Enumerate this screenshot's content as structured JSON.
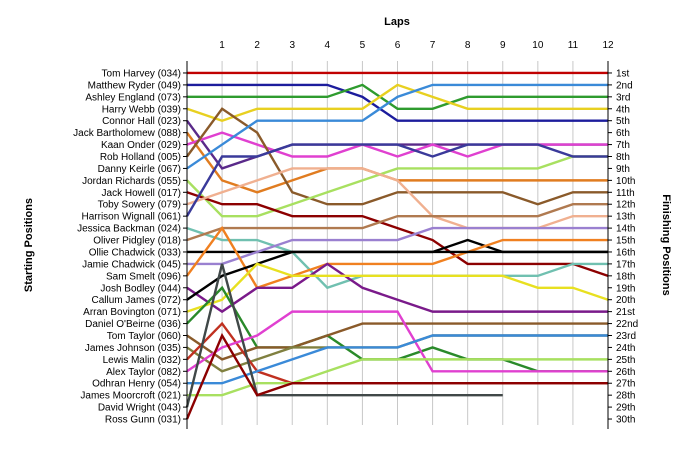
{
  "chart_data": {
    "type": "line",
    "title": "Laps",
    "ylabel_left": "Starting Positions",
    "ylabel_right": "Finishing Positions",
    "x_ticks": [
      1,
      2,
      3,
      4,
      5,
      6,
      7,
      8,
      9,
      10,
      11,
      12
    ],
    "xlim": [
      0,
      12
    ],
    "ylim": [
      1,
      30
    ],
    "grid": "vertical",
    "start_labels": [
      "Tom Harvey (034)",
      "Matthew Ryder (049)",
      "Ashley England (073)",
      "Harry Webb (039)",
      "Connor Hall (023)",
      "Jack Bartholomew (088)",
      "Kaan Onder (029)",
      "Rob Holland (005)",
      "Danny Keirle (067)",
      "Jordan Richards (055)",
      "Jack Howell (017)",
      "Toby Sowery (079)",
      "Harrison Wignall (061)",
      "Jessica Backman (024)",
      "Oliver Pidgley (018)",
      "Ollie Chadwick (033)",
      "Jamie Chadwick (045)",
      "Sam Smelt (096)",
      "Josh Bodley (044)",
      "Callum James (072)",
      "Arran Bovington (071)",
      "Daniel O'Beirne (036)",
      "Tom Taylor (060)",
      "James Johnson (035)",
      "Lewis Malin (032)",
      "Alex Taylor (082)",
      "Odhran Henry (054)",
      "James Moorcroft (021)",
      "David Wright (043)",
      "Ross Gunn (031)"
    ],
    "finish_labels": [
      "1st",
      "2nd",
      "3rd",
      "4th",
      "5th",
      "6th",
      "7th",
      "8th",
      "9th",
      "10th",
      "11th",
      "12th",
      "13th",
      "14th",
      "15th",
      "16th",
      "17th",
      "18th",
      "19th",
      "20th",
      "21st",
      "22nd",
      "23rd",
      "24th",
      "25th",
      "26th",
      "27th",
      "28th",
      "29th",
      "30th"
    ],
    "series": [
      {
        "color": "#c00000",
        "values": [
          1,
          1,
          1,
          1,
          1,
          1,
          1,
          1,
          1,
          1,
          1,
          1,
          1
        ]
      },
      {
        "color": "#1c1c9c",
        "values": [
          2,
          2,
          2,
          2,
          2,
          3,
          5,
          5,
          5,
          5,
          5,
          5,
          5
        ]
      },
      {
        "color": "#2e9b2e",
        "values": [
          3,
          3,
          3,
          3,
          3,
          2,
          4,
          4,
          3,
          3,
          3,
          3,
          3
        ]
      },
      {
        "color": "#e8d020",
        "values": [
          4,
          5,
          4,
          4,
          4,
          4,
          2,
          3,
          4,
          4,
          4,
          4,
          4
        ]
      },
      {
        "color": "#5a2a8a",
        "values": [
          5,
          9,
          8,
          7,
          7,
          7,
          7,
          7,
          7,
          7,
          7,
          7,
          7
        ]
      },
      {
        "color": "#e07c20",
        "values": [
          6,
          10,
          11,
          10,
          9,
          9,
          10,
          10,
          10,
          10,
          10,
          10,
          10
        ]
      },
      {
        "color": "#e040d0",
        "values": [
          7,
          6,
          7,
          8,
          8,
          7,
          8,
          7,
          8,
          7,
          7,
          7,
          7
        ]
      },
      {
        "color": "#8a5a2a",
        "values": [
          8,
          4,
          6,
          11,
          12,
          12,
          11,
          11,
          11,
          11,
          12,
          11,
          11
        ]
      },
      {
        "color": "#3a8ad8",
        "values": [
          9,
          7,
          5,
          5,
          5,
          5,
          3,
          2,
          2,
          2,
          2,
          2,
          2
        ]
      },
      {
        "color": "#a8e060",
        "values": [
          10,
          13,
          13,
          12,
          11,
          10,
          9,
          9,
          9,
          9,
          9,
          8,
          8
        ]
      },
      {
        "color": "#8c0000",
        "values": [
          11,
          12,
          12,
          13,
          13,
          13,
          14,
          15,
          17,
          17,
          17,
          17,
          18
        ]
      },
      {
        "color": "#f0b090",
        "values": [
          12,
          11,
          10,
          9,
          9,
          9,
          10,
          13,
          14,
          14,
          14,
          13,
          13
        ]
      },
      {
        "color": "#3a3a9a",
        "values": [
          13,
          8,
          8,
          7,
          7,
          7,
          7,
          8,
          7,
          7,
          7,
          8,
          8
        ]
      },
      {
        "color": "#70c0b0",
        "values": [
          14,
          15,
          15,
          16,
          19,
          18,
          18,
          18,
          18,
          18,
          18,
          17,
          17
        ]
      },
      {
        "color": "#b07a50",
        "values": [
          15,
          14,
          14,
          14,
          14,
          14,
          13,
          13,
          13,
          13,
          13,
          12,
          12
        ]
      },
      {
        "color": "#000000",
        "values": [
          16,
          16,
          16,
          16,
          16,
          16,
          16,
          16,
          15,
          16,
          16,
          16,
          16
        ]
      },
      {
        "color": "#9a80d0",
        "values": [
          17,
          17,
          16,
          15,
          15,
          15,
          15,
          14,
          14,
          14,
          14,
          14,
          14
        ]
      },
      {
        "color": "#f08020",
        "values": [
          18,
          14,
          19,
          18,
          17,
          17,
          17,
          17,
          16,
          15,
          15,
          15,
          15
        ]
      },
      {
        "color": "#7a1a8a",
        "values": [
          19,
          21,
          19,
          19,
          17,
          19,
          20,
          21,
          21,
          21,
          21,
          21,
          21
        ]
      },
      {
        "color": "#000000",
        "values": [
          20,
          18,
          17,
          16,
          16,
          16,
          16,
          16,
          16,
          16,
          16,
          16,
          16
        ]
      },
      {
        "color": "#e8e020",
        "values": [
          21,
          20,
          17,
          18,
          18,
          18,
          18,
          18,
          18,
          18,
          19,
          19,
          20
        ]
      },
      {
        "color": "#2a8a2a",
        "values": [
          22,
          19,
          24,
          24,
          23,
          25,
          25,
          24,
          25,
          25,
          26,
          26,
          26
        ]
      },
      {
        "color": "#8a5a2a",
        "values": [
          23,
          25,
          24,
          24,
          23,
          22,
          22,
          22,
          22,
          22,
          22,
          22,
          22
        ]
      },
      {
        "color": "#808040",
        "values": [
          24,
          26,
          25,
          24,
          24,
          24,
          24,
          23,
          23,
          23,
          23,
          23,
          23
        ]
      },
      {
        "color": "#c03020",
        "values": [
          25,
          22,
          26,
          27,
          27,
          27,
          27,
          27,
          27,
          27,
          27,
          27,
          27
        ]
      },
      {
        "color": "#e040d0",
        "values": [
          26,
          24,
          23,
          21,
          21,
          21,
          21,
          26,
          26,
          26,
          26,
          26,
          26
        ]
      },
      {
        "color": "#3a8ad8",
        "values": [
          27,
          27,
          26,
          25,
          24,
          24,
          24,
          23,
          23,
          23,
          23,
          23,
          23
        ]
      },
      {
        "color": "#a8e060",
        "values": [
          28,
          28,
          27,
          27,
          26,
          25,
          25,
          25,
          25,
          25,
          25,
          25,
          25
        ]
      },
      {
        "color": "#404848",
        "values": [
          29,
          17,
          28,
          28,
          28,
          28,
          28,
          28,
          28,
          28
        ]
      },
      {
        "color": "#8c0000",
        "values": [
          30,
          23,
          28,
          27,
          27,
          27,
          27,
          27,
          27,
          27,
          27,
          27,
          27
        ]
      }
    ]
  }
}
